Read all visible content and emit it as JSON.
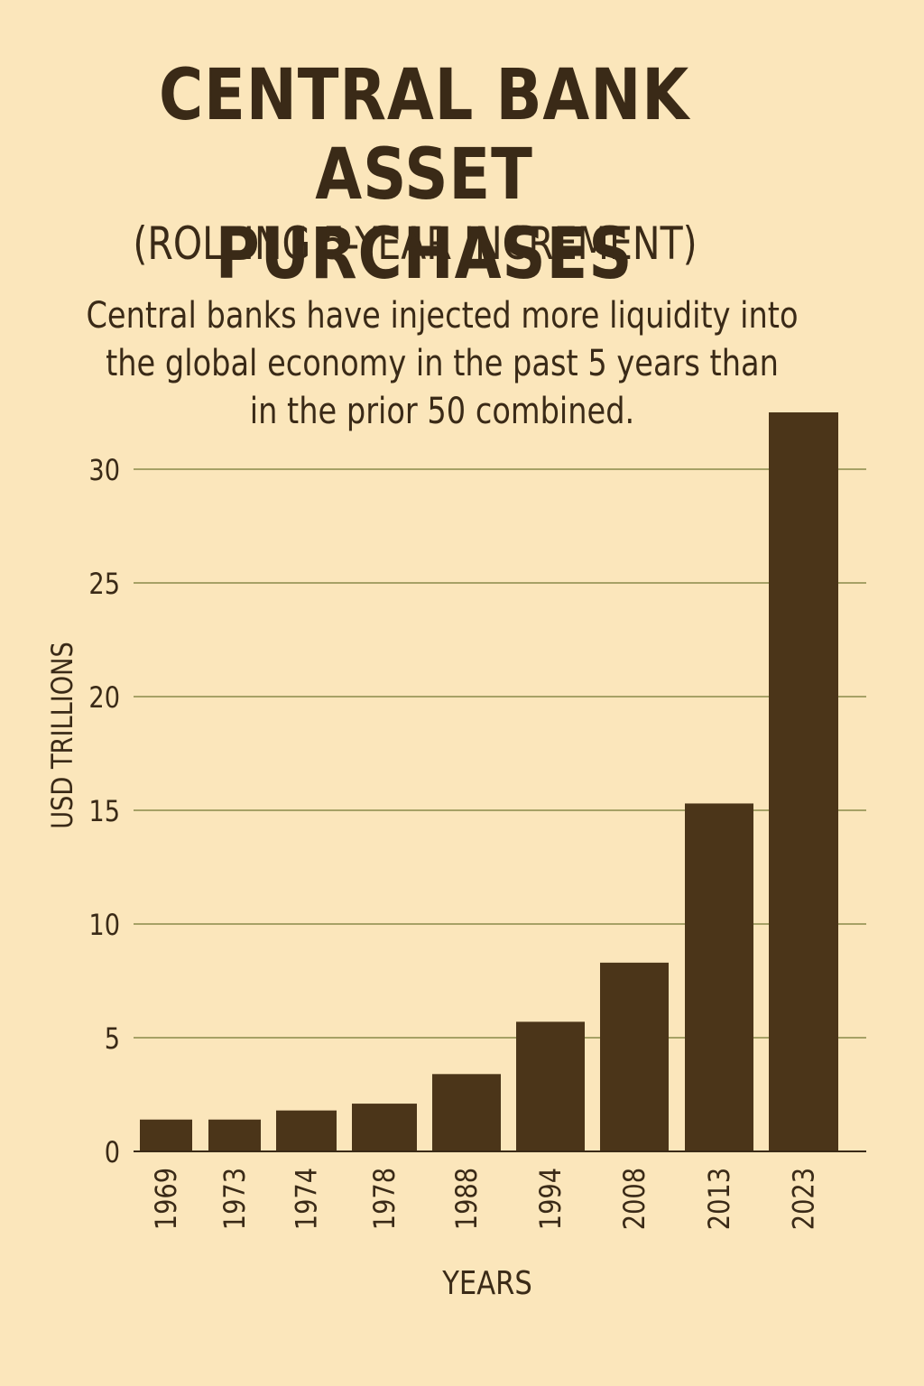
{
  "colors": {
    "background": "#fbe6bb",
    "text": "#3a2a17",
    "bar": "#4b3519",
    "grid": "#8a8a4a",
    "axis": "#3a2a17"
  },
  "chart_data": {
    "type": "bar",
    "title_lines": [
      "CENTRAL BANK ASSET",
      "PURCHASES"
    ],
    "subtitle": "(ROLLING 5-YEAR INCREMENT)",
    "caption_lines": [
      "Central banks have injected more liquidity into",
      "the global economy in the past 5 years than",
      "in the prior 50 combined."
    ],
    "xlabel": "YEARS",
    "ylabel": "USD TRILLIONS",
    "categories": [
      "1969",
      "1973",
      "1974",
      "1978",
      "1988",
      "1994",
      "2008",
      "2013",
      "2023"
    ],
    "values": [
      1.4,
      1.4,
      1.8,
      2.1,
      3.4,
      5.7,
      8.3,
      15.3,
      32.5
    ],
    "yticks": [
      0,
      5,
      10,
      15,
      20,
      25,
      30
    ],
    "ylim": [
      0,
      32.5
    ],
    "grid": true,
    "legend": "none"
  }
}
